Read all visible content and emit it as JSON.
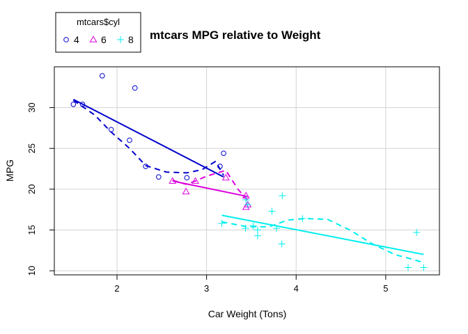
{
  "chart_data": {
    "type": "scatter",
    "title": "mtcars MPG relative to Weight",
    "xlabel": "Car Weight (Tons)",
    "ylabel": "MPG",
    "xlim": [
      1.3,
      5.6
    ],
    "ylim": [
      9.5,
      35
    ],
    "x_ticks": [
      2,
      3,
      4,
      5
    ],
    "y_ticks": [
      10,
      15,
      20,
      25,
      30
    ],
    "grid": true,
    "legend": {
      "title": "mtcars$cyl",
      "position": "top-left",
      "entries": [
        "4",
        "6",
        "8"
      ]
    },
    "series": [
      {
        "name": "4",
        "color": "#0000CD",
        "marker": "circle",
        "points": [
          [
            2.32,
            22.8
          ],
          [
            3.19,
            24.4
          ],
          [
            3.15,
            22.8
          ],
          [
            2.2,
            32.4
          ],
          [
            1.615,
            30.4
          ],
          [
            1.835,
            33.9
          ],
          [
            2.465,
            21.5
          ],
          [
            1.935,
            27.3
          ],
          [
            2.14,
            26.0
          ],
          [
            1.513,
            30.4
          ],
          [
            2.78,
            21.4
          ]
        ],
        "fit": [
          [
            1.513,
            31.0
          ],
          [
            3.19,
            21.5
          ]
        ],
        "smooth": [
          [
            1.513,
            30.9
          ],
          [
            1.75,
            29.1
          ],
          [
            1.935,
            27.0
          ],
          [
            2.14,
            25.0
          ],
          [
            2.32,
            22.9
          ],
          [
            2.55,
            22.1
          ],
          [
            2.78,
            22.0
          ],
          [
            2.95,
            22.4
          ],
          [
            3.1,
            23.4
          ],
          [
            3.19,
            21.7
          ]
        ]
      },
      {
        "name": "6",
        "color": "#DD00DD",
        "marker": "triangle",
        "points": [
          [
            2.62,
            21.0
          ],
          [
            2.875,
            21.0
          ],
          [
            3.215,
            21.4
          ],
          [
            3.46,
            18.1
          ],
          [
            3.44,
            19.2
          ],
          [
            3.44,
            17.8
          ],
          [
            2.77,
            19.7
          ]
        ],
        "fit": [
          [
            2.62,
            21.0
          ],
          [
            3.46,
            19.1
          ]
        ],
        "smooth": [
          [
            2.62,
            21.1
          ],
          [
            2.77,
            20.6
          ],
          [
            2.875,
            21.0
          ],
          [
            3.0,
            21.6
          ],
          [
            3.215,
            22.3
          ],
          [
            3.35,
            20.0
          ],
          [
            3.46,
            18.6
          ]
        ]
      },
      {
        "name": "8",
        "color": "#00EEEE",
        "marker": "plus",
        "points": [
          [
            3.44,
            18.7
          ],
          [
            3.46,
            18.1
          ],
          [
            3.57,
            14.3
          ],
          [
            4.07,
            16.4
          ],
          [
            3.73,
            17.3
          ],
          [
            3.78,
            15.2
          ],
          [
            5.25,
            10.4
          ],
          [
            5.424,
            10.4
          ],
          [
            5.345,
            14.7
          ],
          [
            3.52,
            15.5
          ],
          [
            3.435,
            15.2
          ],
          [
            3.84,
            13.3
          ],
          [
            3.845,
            19.2
          ],
          [
            3.17,
            15.8
          ],
          [
            3.57,
            15.0
          ]
        ],
        "fit": [
          [
            3.17,
            16.8
          ],
          [
            5.424,
            12.0
          ]
        ],
        "smooth": [
          [
            3.17,
            16.0
          ],
          [
            3.45,
            15.4
          ],
          [
            3.7,
            15.4
          ],
          [
            3.9,
            16.2
          ],
          [
            4.1,
            16.4
          ],
          [
            4.35,
            16.3
          ],
          [
            4.6,
            15.0
          ],
          [
            4.85,
            13.3
          ],
          [
            5.1,
            12.0
          ],
          [
            5.3,
            11.4
          ],
          [
            5.424,
            11.0
          ]
        ]
      }
    ]
  }
}
